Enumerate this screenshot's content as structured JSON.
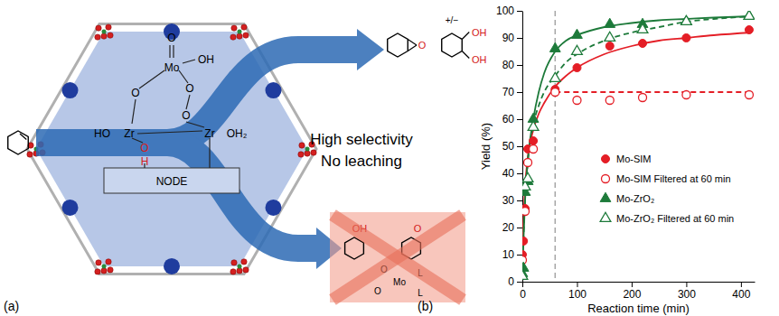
{
  "diagram": {
    "panel_label": "(a)",
    "captions": [
      "High selectivity",
      "No leaching"
    ],
    "node_label": "NODE",
    "mo_site": [
      "O",
      "Mo",
      "OH",
      "O",
      "O",
      "HO",
      "Zr",
      "Zr",
      "OH₂",
      "O",
      "O",
      "H"
    ],
    "products": {
      "epoxide": "O",
      "diol": [
        "+/−",
        "OH",
        "OH"
      ]
    },
    "byproducts": {
      "enol": "OH",
      "enone": "O",
      "complex": [
        "O",
        "O",
        "Mo",
        "L",
        "L"
      ]
    }
  },
  "chart_data": {
    "type": "scatter",
    "annotations": [
      "(b)"
    ],
    "x_label": "Reaction time (min)",
    "y_label": "Yield (%)",
    "xlim": [
      0,
      425
    ],
    "xticks": [
      0,
      100,
      200,
      300,
      400
    ],
    "ylim": [
      0,
      100
    ],
    "yticks": [
      0,
      10,
      20,
      30,
      40,
      50,
      60,
      70,
      80,
      90,
      100
    ],
    "grid": false,
    "legend": "lower right",
    "reference_lines": [
      {
        "x": 60,
        "color": "#a6a6a6",
        "line_style": "dashed"
      }
    ],
    "series": [
      {
        "name": "Mo-SIM",
        "color": "#e41e26",
        "marker": "circle",
        "x": [
          0,
          2,
          5,
          10,
          20,
          60,
          100,
          160,
          220,
          300,
          415
        ],
        "values": [
          10,
          15,
          27,
          49,
          52,
          71,
          79,
          87,
          88,
          90,
          93
        ]
      },
      {
        "name": "Mo-SIM Filtered at 60 min",
        "color": "#e41e26",
        "marker": "circle-open",
        "x": [
          0,
          5,
          10,
          20,
          60,
          100,
          160,
          220,
          300,
          415
        ],
        "values": [
          8,
          26,
          44,
          49,
          70,
          67,
          67,
          68,
          69,
          69
        ]
      },
      {
        "name": "Mo-ZrO₂",
        "color": "#1d7a3a",
        "marker": "triangle",
        "x": [
          0,
          2,
          5,
          10,
          20,
          60,
          100,
          160,
          220,
          300,
          415
        ],
        "values": [
          3,
          5,
          33,
          37,
          60,
          86,
          91,
          95,
          95,
          96,
          98
        ]
      },
      {
        "name": "Mo-ZrO₂ Filtered at 60 min",
        "color": "#1d7a3a",
        "marker": "triangle-open",
        "x": [
          0,
          5,
          10,
          20,
          60,
          100,
          160,
          220,
          300,
          415
        ],
        "values": [
          2,
          35,
          38,
          57,
          75,
          85,
          90,
          93,
          96,
          98
        ]
      },
      {
        "type": "line",
        "color": "#e41e26",
        "line_style": "solid",
        "x": [
          0,
          5,
          10,
          20,
          30,
          40,
          60,
          80,
          100,
          150,
          200,
          250,
          300,
          350,
          420
        ],
        "values": [
          12,
          35,
          46,
          56,
          62,
          66,
          72,
          76,
          79,
          84,
          87,
          89,
          90,
          91,
          92
        ]
      },
      {
        "type": "line",
        "color": "#e41e26",
        "line_style": "dashed",
        "x": [
          60,
          420
        ],
        "values": [
          70,
          70
        ]
      },
      {
        "type": "line",
        "color": "#1d7a3a",
        "line_style": "solid",
        "x": [
          0,
          5,
          10,
          20,
          30,
          40,
          60,
          80,
          100,
          150,
          200,
          250,
          300,
          350,
          420
        ],
        "values": [
          5,
          30,
          45,
          60,
          70,
          77,
          85,
          89,
          91,
          94,
          95.5,
          96.5,
          97,
          97.5,
          98
        ]
      },
      {
        "type": "line",
        "color": "#1d7a3a",
        "line_style": "dashed",
        "x": [
          0,
          5,
          10,
          20,
          30,
          40,
          60,
          80,
          100,
          150,
          200,
          250,
          300,
          350,
          420
        ],
        "values": [
          5,
          30,
          44,
          58,
          65,
          70,
          76,
          81,
          84,
          89,
          92,
          94,
          96,
          97,
          98
        ]
      }
    ]
  }
}
